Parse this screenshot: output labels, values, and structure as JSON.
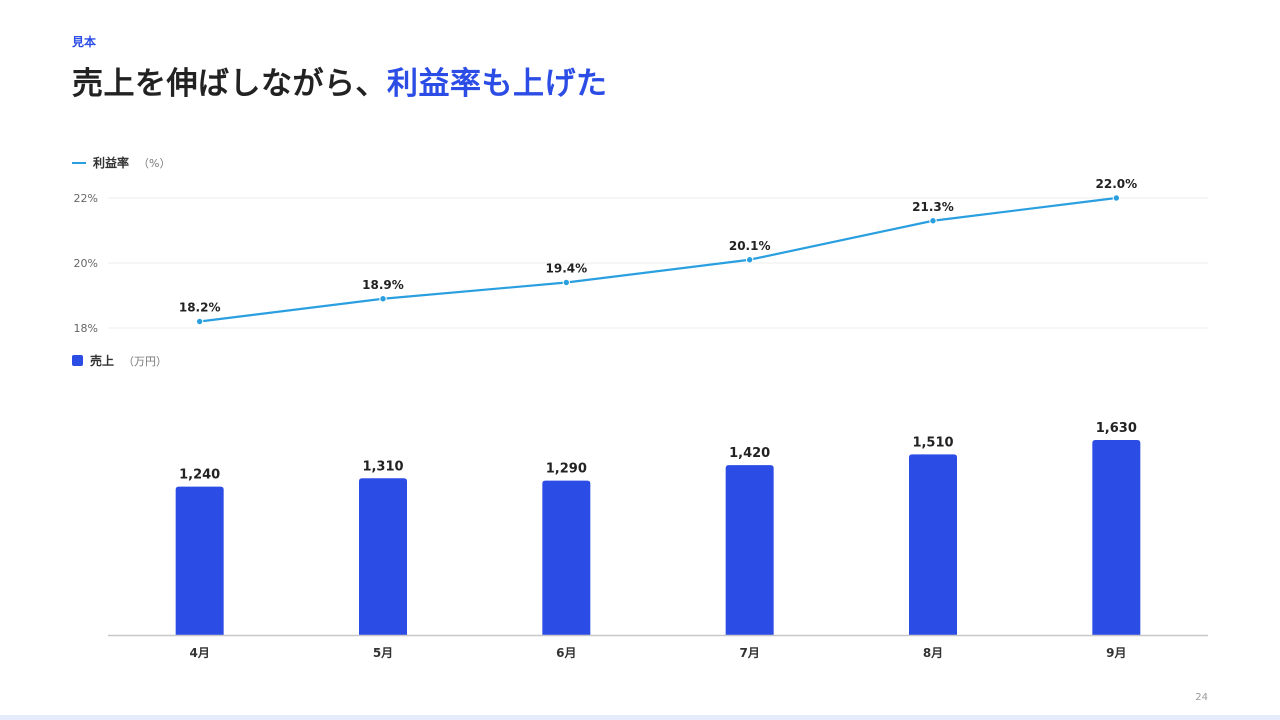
{
  "header": {
    "tag": "見本",
    "title_main": "売上を伸ばしながら、",
    "title_accent": "利益率も上げた"
  },
  "legend_line": {
    "name": "利益率",
    "unit": "（%）"
  },
  "legend_bar": {
    "name": "売上",
    "unit": "（万円）"
  },
  "page_number": "24",
  "colors": {
    "bar": "#2c4de5",
    "line": "#2a9fe0",
    "accent": "#2c4de5",
    "grid": "#ececec",
    "axis": "#c8c8c8"
  },
  "chart_data": [
    {
      "type": "line",
      "categories": [
        "4月",
        "5月",
        "6月",
        "7月",
        "8月",
        "9月"
      ],
      "series": [
        {
          "name": "利益率",
          "values": [
            18.2,
            18.9,
            19.4,
            20.1,
            21.3,
            22.0
          ]
        }
      ],
      "data_labels": [
        "18.2%",
        "18.9%",
        "19.4%",
        "20.1%",
        "21.3%",
        "22.0%"
      ],
      "ylim": [
        18,
        22
      ],
      "yticks": [
        22,
        20,
        18
      ],
      "ytick_labels": [
        "22%",
        "20%",
        "18%"
      ],
      "grid": true
    },
    {
      "type": "bar",
      "categories": [
        "4月",
        "5月",
        "6月",
        "7月",
        "8月",
        "9月"
      ],
      "series": [
        {
          "name": "売上",
          "values": [
            1240,
            1310,
            1290,
            1420,
            1510,
            1630
          ]
        }
      ],
      "data_labels": [
        "1,240",
        "1,310",
        "1,290",
        "1,420",
        "1,510",
        "1,630"
      ],
      "ylim": [
        0,
        1630
      ]
    }
  ]
}
